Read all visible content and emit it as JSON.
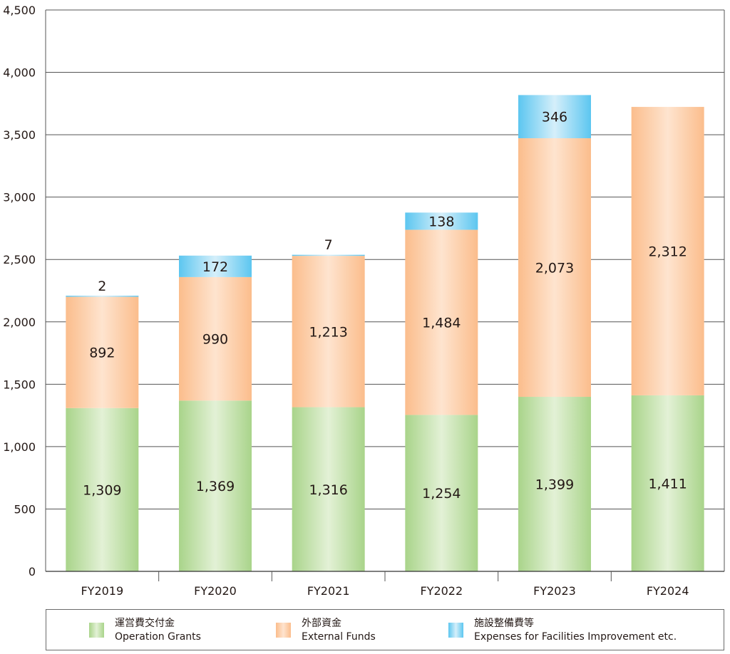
{
  "chart_data": {
    "type": "bar",
    "stacked": true,
    "categories": [
      "FY2019",
      "FY2020",
      "FY2021",
      "FY2022",
      "FY2023",
      "FY2024"
    ],
    "ylim": [
      0,
      4500
    ],
    "yticks": [
      0,
      500,
      1000,
      1500,
      2000,
      2500,
      3000,
      3500,
      4000,
      4500
    ],
    "ytick_labels": [
      "0",
      "500",
      "1,000",
      "1,500",
      "2,000",
      "2,500",
      "3,000",
      "3,500",
      "4,000",
      "4,500"
    ],
    "grid": true,
    "legend_position": "bottom",
    "series": [
      {
        "name": "運営費交付金 Operation Grants",
        "name_ja": "運営費交付金",
        "name_en": "Operation Grants",
        "values": [
          1309,
          1369,
          1316,
          1254,
          1399,
          1411
        ],
        "labels": [
          "1,309",
          "1,369",
          "1,316",
          "1,254",
          "1,399",
          "1,411"
        ],
        "color": "#b9dc9d"
      },
      {
        "name": "外部資金 External Funds",
        "name_ja": "外部資金",
        "name_en": "External Funds",
        "values": [
          892,
          990,
          1213,
          1484,
          2073,
          2312
        ],
        "labels": [
          "892",
          "990",
          "1,213",
          "1,484",
          "2,073",
          "2,312"
        ],
        "color": "#fbc79a"
      },
      {
        "name": "施設整備費等 Expenses for Facilities Improvement etc.",
        "name_ja": "施設整備費等",
        "name_en": "Expenses for Facilities Improvement etc.",
        "values": [
          2,
          172,
          7,
          138,
          346,
          0
        ],
        "labels": [
          "2",
          "172",
          "7",
          "138",
          "346",
          ""
        ],
        "color": "#8fd3f1"
      }
    ]
  }
}
